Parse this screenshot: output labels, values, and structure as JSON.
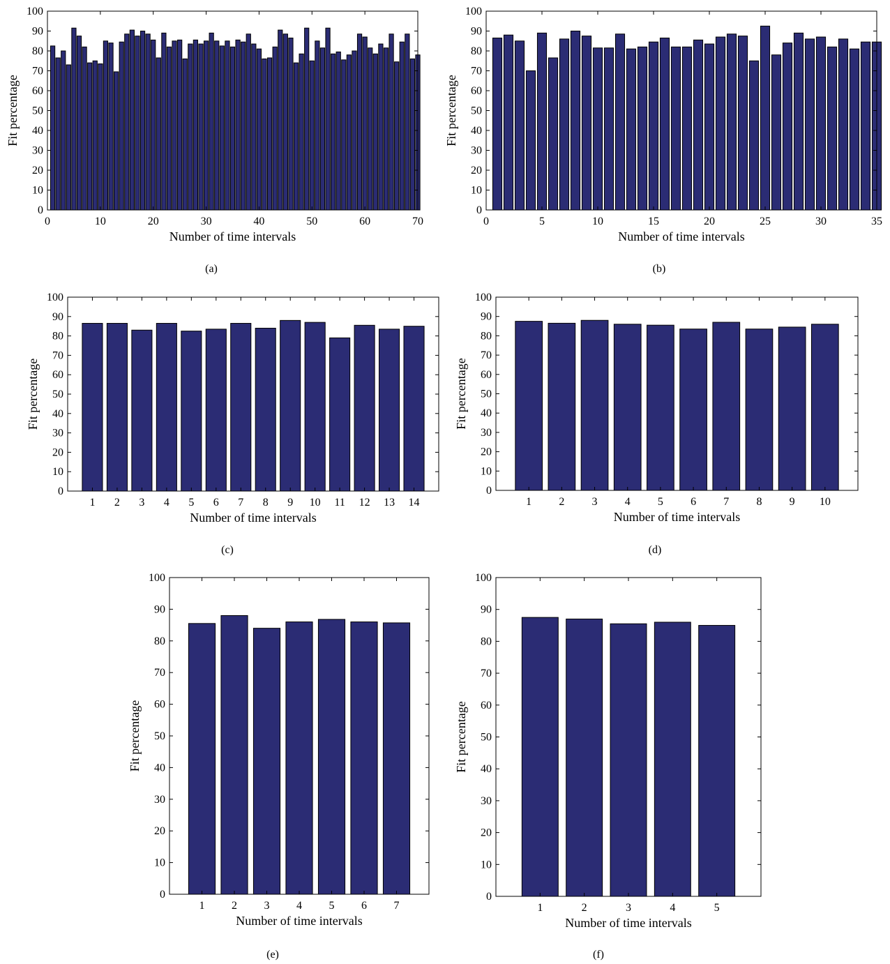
{
  "bar_color": "#2b2c74",
  "chart_data": [
    {
      "panel_label": "(a)",
      "type": "bar",
      "xlabel": "Number of time intervals",
      "ylabel": "Fit percentage",
      "xlim": [
        0,
        70
      ],
      "ylim": [
        0,
        100
      ],
      "xticks": [
        0,
        10,
        20,
        30,
        40,
        50,
        60,
        70
      ],
      "yticks": [
        0,
        10,
        20,
        30,
        40,
        50,
        60,
        70,
        80,
        90,
        100
      ],
      "grid": false,
      "x": [
        1,
        2,
        3,
        4,
        5,
        6,
        7,
        8,
        9,
        10,
        11,
        12,
        13,
        14,
        15,
        16,
        17,
        18,
        19,
        20,
        21,
        22,
        23,
        24,
        25,
        26,
        27,
        28,
        29,
        30,
        31,
        32,
        33,
        34,
        35,
        36,
        37,
        38,
        39,
        40,
        41,
        42,
        43,
        44,
        45,
        46,
        47,
        48,
        49,
        50,
        51,
        52,
        53,
        54,
        55,
        56,
        57,
        58,
        59,
        60,
        61,
        62,
        63,
        64,
        65,
        66,
        67,
        68,
        69,
        70
      ],
      "values": [
        82.5,
        76.5,
        80,
        73,
        91.5,
        87.5,
        82,
        74,
        75,
        73.5,
        85,
        84,
        69.5,
        84.5,
        88.5,
        90.5,
        87.5,
        90,
        88.5,
        85.5,
        76.5,
        89,
        82,
        85,
        85.5,
        76,
        83.5,
        85.5,
        83.5,
        85,
        89,
        85,
        82.5,
        85,
        82,
        85.5,
        84.5,
        88.5,
        83.5,
        81,
        76,
        76.5,
        82,
        90.5,
        88.5,
        86.5,
        74,
        78.5,
        91.5,
        75,
        85,
        81.5,
        91.5,
        78.5,
        79.5,
        75.5,
        78,
        80,
        88.5,
        87,
        81.5,
        78.5,
        83.5,
        81.5,
        88.5,
        74.5,
        84.5,
        88.5,
        76,
        78
      ]
    },
    {
      "panel_label": "(b)",
      "type": "bar",
      "xlabel": "Number of time intervals",
      "ylabel": "Fit percentage",
      "xlim": [
        0,
        35
      ],
      "ylim": [
        0,
        100
      ],
      "xticks": [
        0,
        5,
        10,
        15,
        20,
        25,
        30,
        35
      ],
      "yticks": [
        0,
        10,
        20,
        30,
        40,
        50,
        60,
        70,
        80,
        90,
        100
      ],
      "grid": false,
      "x": [
        1,
        2,
        3,
        4,
        5,
        6,
        7,
        8,
        9,
        10,
        11,
        12,
        13,
        14,
        15,
        16,
        17,
        18,
        19,
        20,
        21,
        22,
        23,
        24,
        25,
        26,
        27,
        28,
        29,
        30,
        31,
        32,
        33,
        34,
        35
      ],
      "values": [
        86.5,
        88,
        85,
        70,
        89,
        76.5,
        86,
        90,
        87.5,
        81.5,
        81.5,
        88.5,
        81,
        82,
        84.5,
        86.5,
        82,
        82,
        85.5,
        83.5,
        87,
        88.5,
        87.5,
        75,
        92.5,
        78,
        84,
        89,
        86,
        87,
        82,
        86,
        81,
        84.5,
        84.5
      ]
    },
    {
      "panel_label": "(c)",
      "type": "bar",
      "xlabel": "Number of time intervals",
      "ylabel": "Fit percentage",
      "xlim": [
        0,
        15
      ],
      "ylim": [
        0,
        100
      ],
      "xticks": [
        1,
        2,
        3,
        4,
        5,
        6,
        7,
        8,
        9,
        10,
        11,
        12,
        13,
        14
      ],
      "yticks": [
        0,
        10,
        20,
        30,
        40,
        50,
        60,
        70,
        80,
        90,
        100
      ],
      "grid": false,
      "x": [
        1,
        2,
        3,
        4,
        5,
        6,
        7,
        8,
        9,
        10,
        11,
        12,
        13,
        14
      ],
      "values": [
        86.5,
        86.5,
        83,
        86.5,
        82.5,
        83.5,
        86.5,
        84,
        88,
        87,
        79,
        85.5,
        83.5,
        85
      ]
    },
    {
      "panel_label": "(d)",
      "type": "bar",
      "xlabel": "Number of time intervals",
      "ylabel": "Fit percentage",
      "xlim": [
        0,
        11
      ],
      "ylim": [
        0,
        100
      ],
      "xticks": [
        1,
        2,
        3,
        4,
        5,
        6,
        7,
        8,
        9,
        10
      ],
      "yticks": [
        0,
        10,
        20,
        30,
        40,
        50,
        60,
        70,
        80,
        90,
        100
      ],
      "grid": false,
      "x": [
        1,
        2,
        3,
        4,
        5,
        6,
        7,
        8,
        9,
        10
      ],
      "values": [
        87.5,
        86.5,
        88,
        86,
        85.5,
        83.5,
        87,
        83.5,
        84.5,
        86
      ]
    },
    {
      "panel_label": "(e)",
      "type": "bar",
      "xlabel": "Number of time intervals",
      "ylabel": "Fit percentage",
      "xlim": [
        0,
        8
      ],
      "ylim": [
        0,
        100
      ],
      "xticks": [
        1,
        2,
        3,
        4,
        5,
        6,
        7
      ],
      "yticks": [
        0,
        10,
        20,
        30,
        40,
        50,
        60,
        70,
        80,
        90,
        100
      ],
      "grid": false,
      "x": [
        1,
        2,
        3,
        4,
        5,
        6,
        7
      ],
      "values": [
        85.5,
        88,
        84,
        86,
        86.8,
        86,
        85.7
      ]
    },
    {
      "panel_label": "(f)",
      "type": "bar",
      "xlabel": "Number of time intervals",
      "ylabel": "Fit percentage",
      "xlim": [
        0,
        6
      ],
      "ylim": [
        0,
        100
      ],
      "xticks": [
        1,
        2,
        3,
        4,
        5
      ],
      "yticks": [
        0,
        10,
        20,
        30,
        40,
        50,
        60,
        70,
        80,
        90,
        100
      ],
      "grid": false,
      "x": [
        1,
        2,
        3,
        4,
        5
      ],
      "values": [
        87.5,
        87,
        85.5,
        86,
        85
      ]
    }
  ]
}
